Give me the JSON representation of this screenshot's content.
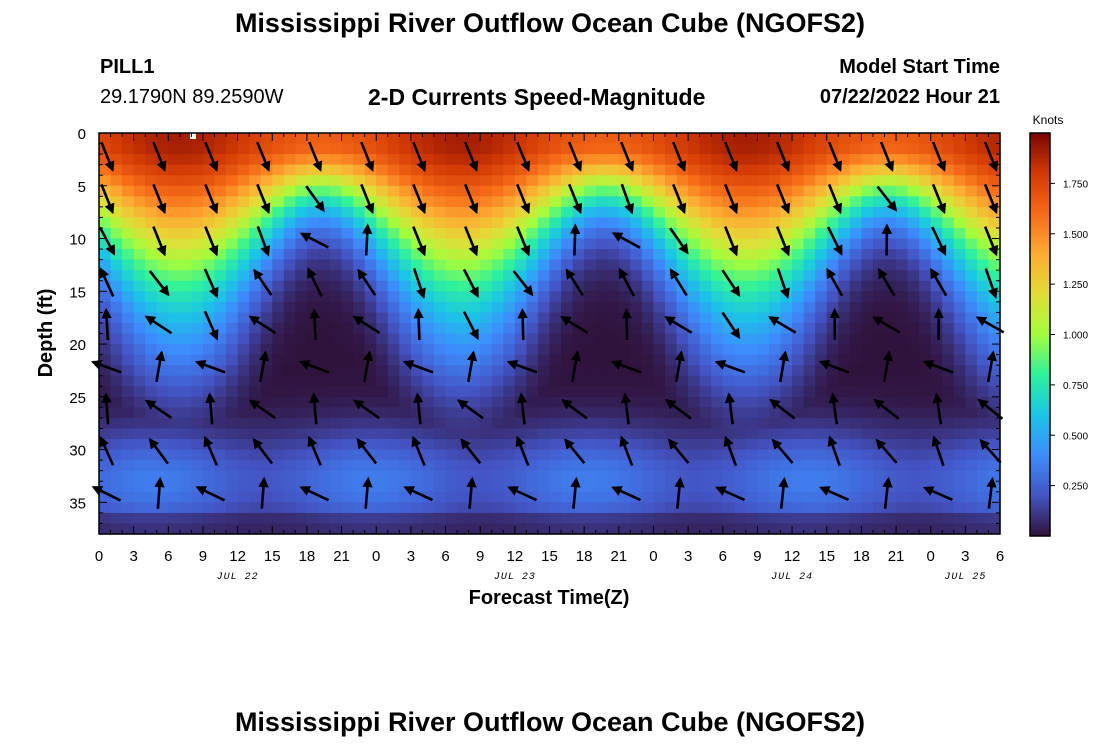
{
  "header": {
    "title": "Mississippi River Outflow Ocean Cube (NGOFS2)",
    "station": "PILL1",
    "coords": "29.1790N  89.2590W",
    "subtitle": "2-D Currents Speed-Magnitude",
    "model_start_label": "Model Start Time",
    "model_start_value": "07/22/2022 Hour 21",
    "footer_title": "Mississippi River Outflow Ocean Cube (NGOFS2)"
  },
  "chart_data": {
    "type": "heatmap",
    "title": "2-D Currents Speed-Magnitude",
    "xlabel": "Forecast Time(Z)",
    "ylabel": "Depth (ft)",
    "x_ticks": [
      "0",
      "3",
      "6",
      "9",
      "12",
      "15",
      "18",
      "21",
      "0",
      "3",
      "6",
      "9",
      "12",
      "15",
      "18",
      "21",
      "0",
      "3",
      "6",
      "9",
      "12",
      "15",
      "18",
      "21",
      "0",
      "3",
      "6"
    ],
    "date_labels": [
      {
        "label": "JUL 22",
        "hour": 12
      },
      {
        "label": "JUL 23",
        "hour": 36
      },
      {
        "label": "JUL 24",
        "hour": 60
      },
      {
        "label": "JUL 25",
        "hour": 75
      }
    ],
    "x_range_hours": [
      0,
      78
    ],
    "y_ticks": [
      0,
      5,
      10,
      15,
      20,
      25,
      30,
      35
    ],
    "ylim": [
      0,
      38
    ],
    "colorbar": {
      "label": "Knots",
      "ticks": [
        "0.250",
        "0.500",
        "0.750",
        "1.000",
        "1.250",
        "1.500",
        "1.750"
      ],
      "range": [
        0,
        2.0
      ]
    },
    "arrow_columns_hours": [
      0,
      4.5,
      9,
      13.5,
      18,
      22.5,
      27,
      31.5,
      36,
      40.5,
      45,
      49.5,
      54,
      58.5,
      63,
      67.5,
      72,
      76.5
    ],
    "arrow_rows_ft": [
      2,
      6,
      10,
      14,
      18,
      22,
      26,
      30,
      34
    ],
    "speed_model": {
      "surface_max_knots": 1.9,
      "tidal_period_hours": 24.5,
      "tidal_peak_hours": [
        7,
        31,
        56
      ]
    }
  }
}
